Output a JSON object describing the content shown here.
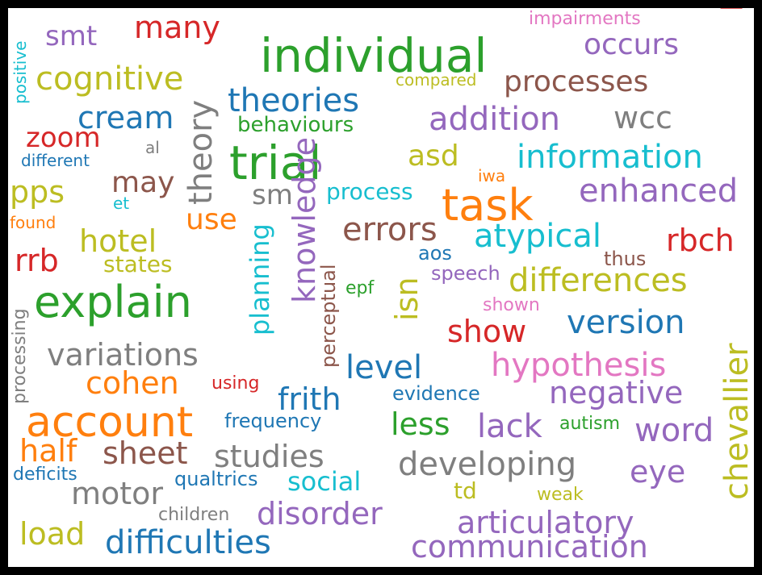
{
  "palette": {
    "blue": "#1f77b4",
    "orange": "#ff7f0e",
    "green": "#2ca02c",
    "red": "#d62728",
    "purple": "#9467bd",
    "brown": "#8c564b",
    "pink": "#e377c2",
    "gray": "#7f7f7f",
    "olive": "#bcbd22",
    "cyan": "#17becf"
  },
  "words": [
    {
      "text": "individual",
      "color": "green"
    },
    {
      "text": "trial",
      "color": "green"
    },
    {
      "text": "task",
      "color": "orange"
    },
    {
      "text": "explain",
      "color": "green"
    },
    {
      "text": "account",
      "color": "orange"
    },
    {
      "text": "cognitive",
      "color": "olive"
    },
    {
      "text": "many",
      "color": "red"
    },
    {
      "text": "smt",
      "color": "purple"
    },
    {
      "text": "occurs",
      "color": "purple"
    },
    {
      "text": "please",
      "color": "red"
    },
    {
      "text": "impairments",
      "color": "pink"
    },
    {
      "text": "positive",
      "color": "cyan"
    },
    {
      "text": "compared",
      "color": "olive"
    },
    {
      "text": "processes",
      "color": "brown"
    },
    {
      "text": "theories",
      "color": "blue"
    },
    {
      "text": "theory",
      "color": "gray"
    },
    {
      "text": "cream",
      "color": "blue"
    },
    {
      "text": "addition",
      "color": "purple"
    },
    {
      "text": "wcc",
      "color": "gray"
    },
    {
      "text": "behaviours",
      "color": "green"
    },
    {
      "text": "zoom",
      "color": "red"
    },
    {
      "text": "al",
      "color": "gray"
    },
    {
      "text": "different",
      "color": "blue"
    },
    {
      "text": "information",
      "color": "cyan"
    },
    {
      "text": "asd",
      "color": "olive"
    },
    {
      "text": "may",
      "color": "brown"
    },
    {
      "text": "pps",
      "color": "olive"
    },
    {
      "text": "et",
      "color": "cyan"
    },
    {
      "text": "sm",
      "color": "gray"
    },
    {
      "text": "process",
      "color": "cyan"
    },
    {
      "text": "iwa",
      "color": "orange"
    },
    {
      "text": "enhanced",
      "color": "purple"
    },
    {
      "text": "found",
      "color": "orange"
    },
    {
      "text": "use",
      "color": "orange"
    },
    {
      "text": "knowledge",
      "color": "purple"
    },
    {
      "text": "errors",
      "color": "brown"
    },
    {
      "text": "atypical",
      "color": "cyan"
    },
    {
      "text": "rbch",
      "color": "red"
    },
    {
      "text": "hotel",
      "color": "olive"
    },
    {
      "text": "rrb",
      "color": "red"
    },
    {
      "text": "states",
      "color": "olive"
    },
    {
      "text": "aos",
      "color": "blue"
    },
    {
      "text": "thus",
      "color": "brown"
    },
    {
      "text": "planning",
      "color": "cyan"
    },
    {
      "text": "perceptual",
      "color": "brown"
    },
    {
      "text": "isn",
      "color": "olive"
    },
    {
      "text": "speech",
      "color": "purple"
    },
    {
      "text": "differences",
      "color": "olive"
    },
    {
      "text": "epf",
      "color": "green"
    },
    {
      "text": "shown",
      "color": "pink"
    },
    {
      "text": "processing",
      "color": "gray"
    },
    {
      "text": "show",
      "color": "red"
    },
    {
      "text": "version",
      "color": "blue"
    },
    {
      "text": "chevallier",
      "color": "olive"
    },
    {
      "text": "variations",
      "color": "gray"
    },
    {
      "text": "level",
      "color": "blue"
    },
    {
      "text": "hypothesis",
      "color": "pink"
    },
    {
      "text": "cohen",
      "color": "orange"
    },
    {
      "text": "using",
      "color": "red"
    },
    {
      "text": "frith",
      "color": "blue"
    },
    {
      "text": "evidence",
      "color": "blue"
    },
    {
      "text": "negative",
      "color": "purple"
    },
    {
      "text": "frequency",
      "color": "blue"
    },
    {
      "text": "less",
      "color": "green"
    },
    {
      "text": "lack",
      "color": "purple"
    },
    {
      "text": "autism",
      "color": "green"
    },
    {
      "text": "word",
      "color": "purple"
    },
    {
      "text": "half",
      "color": "orange"
    },
    {
      "text": "sheet",
      "color": "brown"
    },
    {
      "text": "studies",
      "color": "gray"
    },
    {
      "text": "developing",
      "color": "gray"
    },
    {
      "text": "eye",
      "color": "purple"
    },
    {
      "text": "motor",
      "color": "gray"
    },
    {
      "text": "deficits",
      "color": "blue"
    },
    {
      "text": "qualtrics",
      "color": "blue"
    },
    {
      "text": "social",
      "color": "cyan"
    },
    {
      "text": "td",
      "color": "olive"
    },
    {
      "text": "weak",
      "color": "olive"
    },
    {
      "text": "children",
      "color": "gray"
    },
    {
      "text": "disorder",
      "color": "purple"
    },
    {
      "text": "articulatory",
      "color": "purple"
    },
    {
      "text": "load",
      "color": "olive"
    },
    {
      "text": "difficulties",
      "color": "blue"
    },
    {
      "text": "communication",
      "color": "purple"
    }
  ]
}
